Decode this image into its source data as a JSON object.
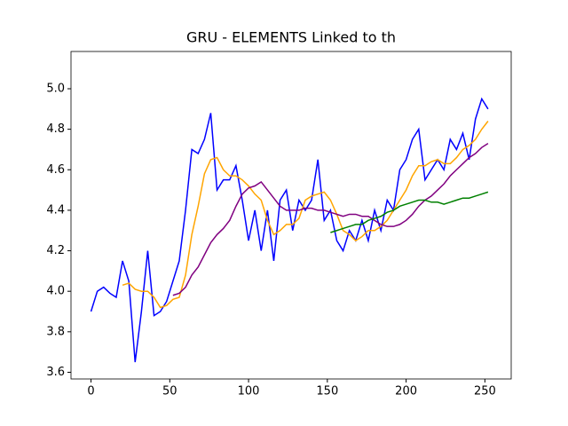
{
  "chart_data": {
    "type": "line",
    "title": "GRU - ELEMENTS Linked to th",
    "x": [
      0,
      4,
      8,
      12,
      16,
      20,
      24,
      28,
      32,
      36,
      40,
      44,
      48,
      52,
      56,
      60,
      64,
      68,
      72,
      76,
      80,
      84,
      88,
      92,
      96,
      100,
      104,
      108,
      112,
      116,
      120,
      124,
      128,
      132,
      136,
      140,
      144,
      148,
      152,
      156,
      160,
      164,
      168,
      172,
      176,
      180,
      184,
      188,
      192,
      196,
      200,
      204,
      208,
      212,
      216,
      220,
      224,
      228,
      232,
      236,
      240,
      244,
      248,
      252
    ],
    "series": [
      {
        "color": "#0000ff",
        "values": [
          3.9,
          4.0,
          4.02,
          3.99,
          3.97,
          4.15,
          4.05,
          3.65,
          3.9,
          4.2,
          3.88,
          3.9,
          3.95,
          4.05,
          4.15,
          4.4,
          4.7,
          4.68,
          4.75,
          4.88,
          4.5,
          4.55,
          4.55,
          4.62,
          4.45,
          4.25,
          4.4,
          4.2,
          4.4,
          4.15,
          4.45,
          4.5,
          4.3,
          4.45,
          4.4,
          4.45,
          4.65,
          4.35,
          4.4,
          4.25,
          4.2,
          4.3,
          4.25,
          4.35,
          4.25,
          4.4,
          4.3,
          4.45,
          4.4,
          4.6,
          4.65,
          4.75,
          4.8,
          4.55,
          4.6,
          4.65,
          4.6,
          4.75,
          4.7,
          4.78,
          4.65,
          4.85,
          4.95,
          4.9
        ]
      },
      {
        "color": "#ffa500",
        "values": [
          null,
          null,
          null,
          null,
          null,
          4.03,
          4.04,
          4.01,
          4.0,
          4.0,
          3.97,
          3.92,
          3.93,
          3.96,
          3.97,
          4.08,
          4.28,
          4.42,
          4.58,
          4.65,
          4.66,
          4.6,
          4.57,
          4.57,
          4.55,
          4.52,
          4.48,
          4.45,
          4.35,
          4.28,
          4.3,
          4.33,
          4.33,
          4.36,
          4.45,
          4.47,
          4.48,
          4.49,
          4.45,
          4.38,
          4.3,
          4.28,
          4.25,
          4.27,
          4.3,
          4.3,
          4.32,
          4.35,
          4.4,
          4.45,
          4.5,
          4.57,
          4.62,
          4.62,
          4.64,
          4.65,
          4.63,
          4.63,
          4.66,
          4.7,
          4.72,
          4.75,
          4.8,
          4.84
        ]
      },
      {
        "color": "#800080",
        "values": [
          null,
          null,
          null,
          null,
          null,
          null,
          null,
          null,
          null,
          null,
          null,
          null,
          null,
          3.98,
          3.99,
          4.02,
          4.08,
          4.12,
          4.18,
          4.24,
          4.28,
          4.31,
          4.35,
          4.42,
          4.48,
          4.51,
          4.52,
          4.54,
          4.5,
          4.46,
          4.42,
          4.4,
          4.4,
          4.4,
          4.41,
          4.41,
          4.4,
          4.4,
          4.39,
          4.38,
          4.37,
          4.38,
          4.38,
          4.37,
          4.37,
          4.35,
          4.33,
          4.32,
          4.32,
          4.33,
          4.35,
          4.38,
          4.42,
          4.45,
          4.47,
          4.5,
          4.53,
          4.57,
          4.6,
          4.63,
          4.66,
          4.68,
          4.71,
          4.73
        ]
      },
      {
        "color": "#008000",
        "values": [
          null,
          null,
          null,
          null,
          null,
          null,
          null,
          null,
          null,
          null,
          null,
          null,
          null,
          null,
          null,
          null,
          null,
          null,
          null,
          null,
          null,
          null,
          null,
          null,
          null,
          null,
          null,
          null,
          null,
          null,
          null,
          null,
          null,
          null,
          null,
          null,
          null,
          null,
          4.29,
          4.3,
          4.31,
          4.32,
          4.33,
          4.33,
          4.35,
          4.36,
          4.37,
          4.39,
          4.4,
          4.42,
          4.43,
          4.44,
          4.45,
          4.45,
          4.44,
          4.44,
          4.43,
          4.44,
          4.45,
          4.46,
          4.46,
          4.47,
          4.48,
          4.49
        ]
      }
    ],
    "xlim": [
      -12.7,
      266.7
    ],
    "xticks": [
      0,
      50,
      100,
      150,
      200,
      250
    ],
    "ylim": [
      3.567,
      5.184
    ],
    "yticks": [
      3.6,
      3.8,
      {
        "value": 4.0,
        "label": "4.0"
      },
      4.2,
      4.4,
      4.6,
      4.8,
      {
        "value": 5.0,
        "label": "5.0"
      }
    ],
    "grid": false
  }
}
